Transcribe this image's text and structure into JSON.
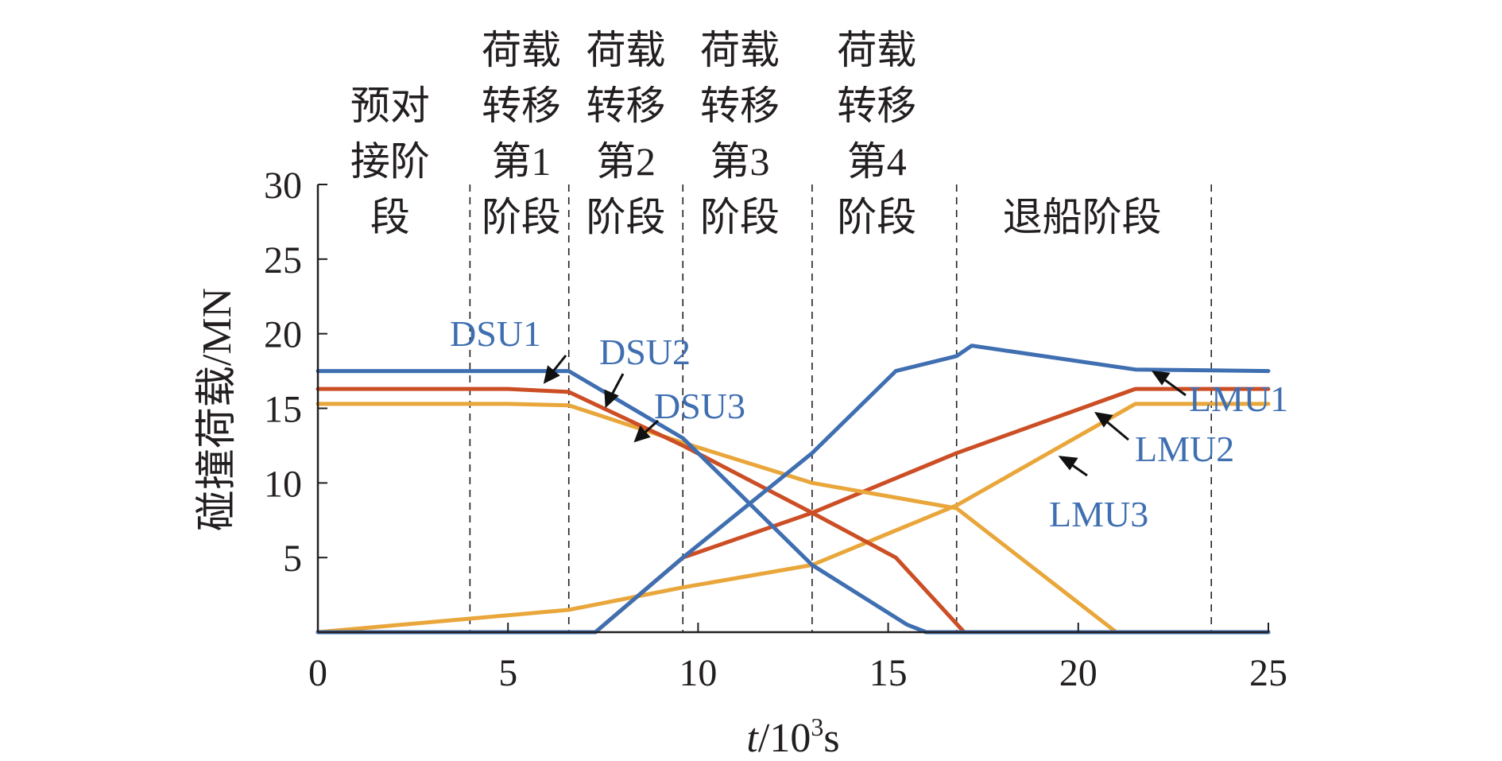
{
  "chart_data": {
    "type": "line",
    "title": "",
    "xlabel_prefix": "t",
    "xlabel_suffix": "/10",
    "xlabel_sup": "3",
    "xlabel_unit": "s",
    "ylabel": "碰撞荷载/MN",
    "xlim": [
      0,
      25
    ],
    "ylim": [
      0,
      30
    ],
    "x_ticks": [
      "0",
      "5",
      "10",
      "15",
      "20",
      "25"
    ],
    "y_ticks": [
      "5",
      "10",
      "15",
      "20",
      "25",
      "30"
    ],
    "x_tick_values": [
      0,
      5,
      10,
      15,
      20,
      25
    ],
    "y_tick_values": [
      5,
      10,
      15,
      20,
      25,
      30
    ],
    "phase_boundaries": [
      4,
      6.6,
      9.6,
      13,
      16.8,
      23.5
    ],
    "phases": [
      {
        "lines": [
          "预对",
          "接阶",
          "段"
        ],
        "x_center": 1.9
      },
      {
        "lines": [
          "荷载",
          "转移",
          "第1",
          "阶段"
        ],
        "x_center": 5.35
      },
      {
        "lines": [
          "荷载",
          "转移",
          "第2",
          "阶段"
        ],
        "x_center": 8.1
      },
      {
        "lines": [
          "荷载",
          "转移",
          "第3",
          "阶段"
        ],
        "x_center": 11.1
      },
      {
        "lines": [
          "荷载",
          "转移",
          "第4",
          "阶段"
        ],
        "x_center": 14.7
      },
      {
        "lines": [
          "退船阶段"
        ],
        "x_center": 20.1
      }
    ],
    "series": [
      {
        "name": "DSU1",
        "color": "#3f6fb1",
        "x": [
          0,
          5,
          6.6,
          9.6,
          13,
          15.5,
          16,
          25
        ],
        "y": [
          17.5,
          17.5,
          17.5,
          13,
          4.5,
          0.5,
          0,
          0
        ]
      },
      {
        "name": "DSU2",
        "color": "#cc4e25",
        "x": [
          0,
          5,
          6.6,
          9.6,
          13,
          15.2,
          17,
          25
        ],
        "y": [
          16.3,
          16.3,
          16.1,
          12.5,
          8,
          5,
          0,
          0
        ]
      },
      {
        "name": "DSU3",
        "color": "#e9a63a",
        "x": [
          0,
          5,
          6.6,
          9.6,
          13,
          16.8,
          21,
          25
        ],
        "y": [
          15.3,
          15.3,
          15.2,
          12.7,
          10,
          8.3,
          0,
          0
        ]
      },
      {
        "name": "LMU1",
        "color": "#3f6fb1",
        "x": [
          0,
          7.3,
          9.6,
          13,
          15.2,
          16.8,
          17.2,
          21.5,
          25
        ],
        "y": [
          0,
          0,
          5,
          12,
          17.5,
          18.5,
          19.2,
          17.6,
          17.5
        ]
      },
      {
        "name": "LMU2",
        "color": "#cc4e25",
        "x": [
          0,
          7.3,
          9.6,
          13,
          16.8,
          21.5,
          25
        ],
        "y": [
          0,
          0,
          5,
          8,
          12,
          16.3,
          16.3
        ]
      },
      {
        "name": "LMU3",
        "color": "#e9a63a",
        "x": [
          0,
          6.6,
          9.6,
          13,
          16.8,
          21.5,
          25
        ],
        "y": [
          0,
          1.5,
          3,
          4.5,
          8.5,
          15.3,
          15.3
        ]
      }
    ]
  }
}
